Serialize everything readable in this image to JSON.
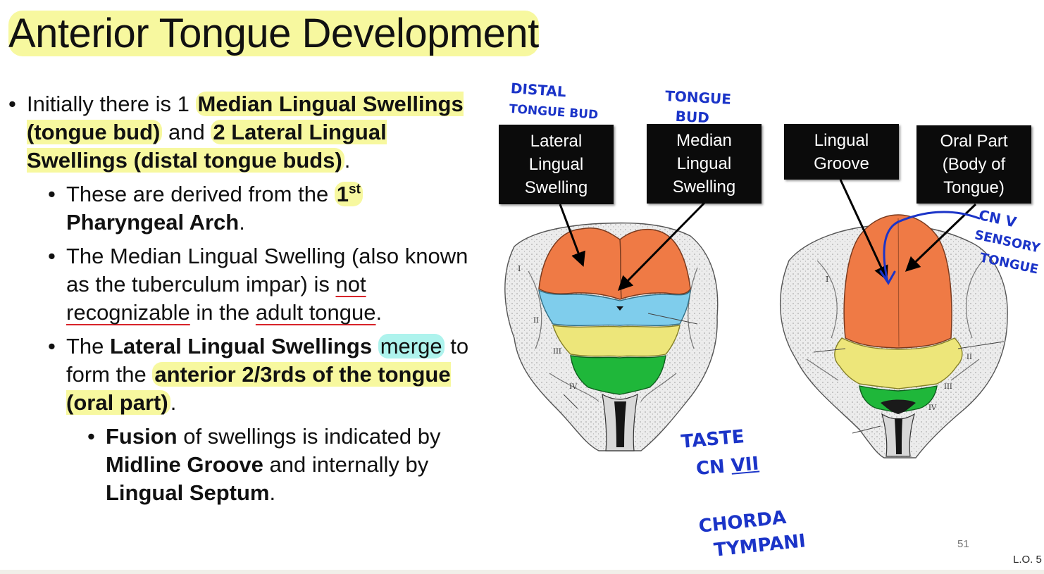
{
  "slide": {
    "title": "Anterior Tongue Development",
    "page_number": "51",
    "lo": "L.O. 5"
  },
  "bullets": {
    "b1": {
      "t1": "Initially there is 1 ",
      "t2": "Median Lingual Swellings (tongue bud)",
      "t3": " and ",
      "t4": "2 Lateral Lingual Swellings (distal tongue buds)",
      "t5": "."
    },
    "b2": {
      "t1": "These are derived from the ",
      "t2": "1",
      "t3": "st",
      "t4": "Pharyngeal Arch",
      "t5": "."
    },
    "b3": {
      "t1": "The Median Lingual Swelling (also known as the tuberculum impar) is ",
      "t2": "not recognizable",
      "t3": " in the ",
      "t4": "adult tongue",
      "t5": "."
    },
    "b4": {
      "t1": "The ",
      "t2": "Lateral Lingual Swellings",
      "t3": " ",
      "t4": "merge",
      "t5": " to form the ",
      "t6": "anterior 2/3rds of the tongue (oral part)",
      "t7": "."
    },
    "b5": {
      "t1": "Fusion",
      "t2": " of swellings is indicated by ",
      "t3": "Midline Groove",
      "t4": " and internally by ",
      "t5": "Lingual Septum",
      "t6": "."
    }
  },
  "diagram": {
    "labels": {
      "lateral": [
        "Lateral",
        "Lingual",
        "Swelling"
      ],
      "median": [
        "Median",
        "Lingual",
        "Swelling"
      ],
      "groove": [
        "Lingual",
        "Groove"
      ],
      "oral": [
        "Oral Part",
        "(Body of",
        "Tongue)"
      ]
    },
    "arch_numerals": {
      "left": [
        "I",
        "II",
        "III",
        "IV"
      ],
      "right": [
        "I",
        "II",
        "III",
        "IV"
      ]
    },
    "colors": {
      "orange": "#ef7a45",
      "blue": "#7fcdec",
      "yellow": "#ede67a",
      "green": "#1fb73a",
      "ink": "#1b34c8"
    }
  },
  "annotations": {
    "distal_1": "DISTAL",
    "distal_2": "TONGUE BUD",
    "tongue_1": "TONGUE",
    "tongue_2": "BUD",
    "cnv_1": "CN V",
    "cnv_2": "SENSORY",
    "cnv_3": "TONGUE",
    "taste_1": "TASTE",
    "taste_2a": "CN ",
    "taste_2b": "VII",
    "taste_3": "⇓",
    "taste_4": "CHORDA",
    "taste_5": "TYMPANI"
  }
}
